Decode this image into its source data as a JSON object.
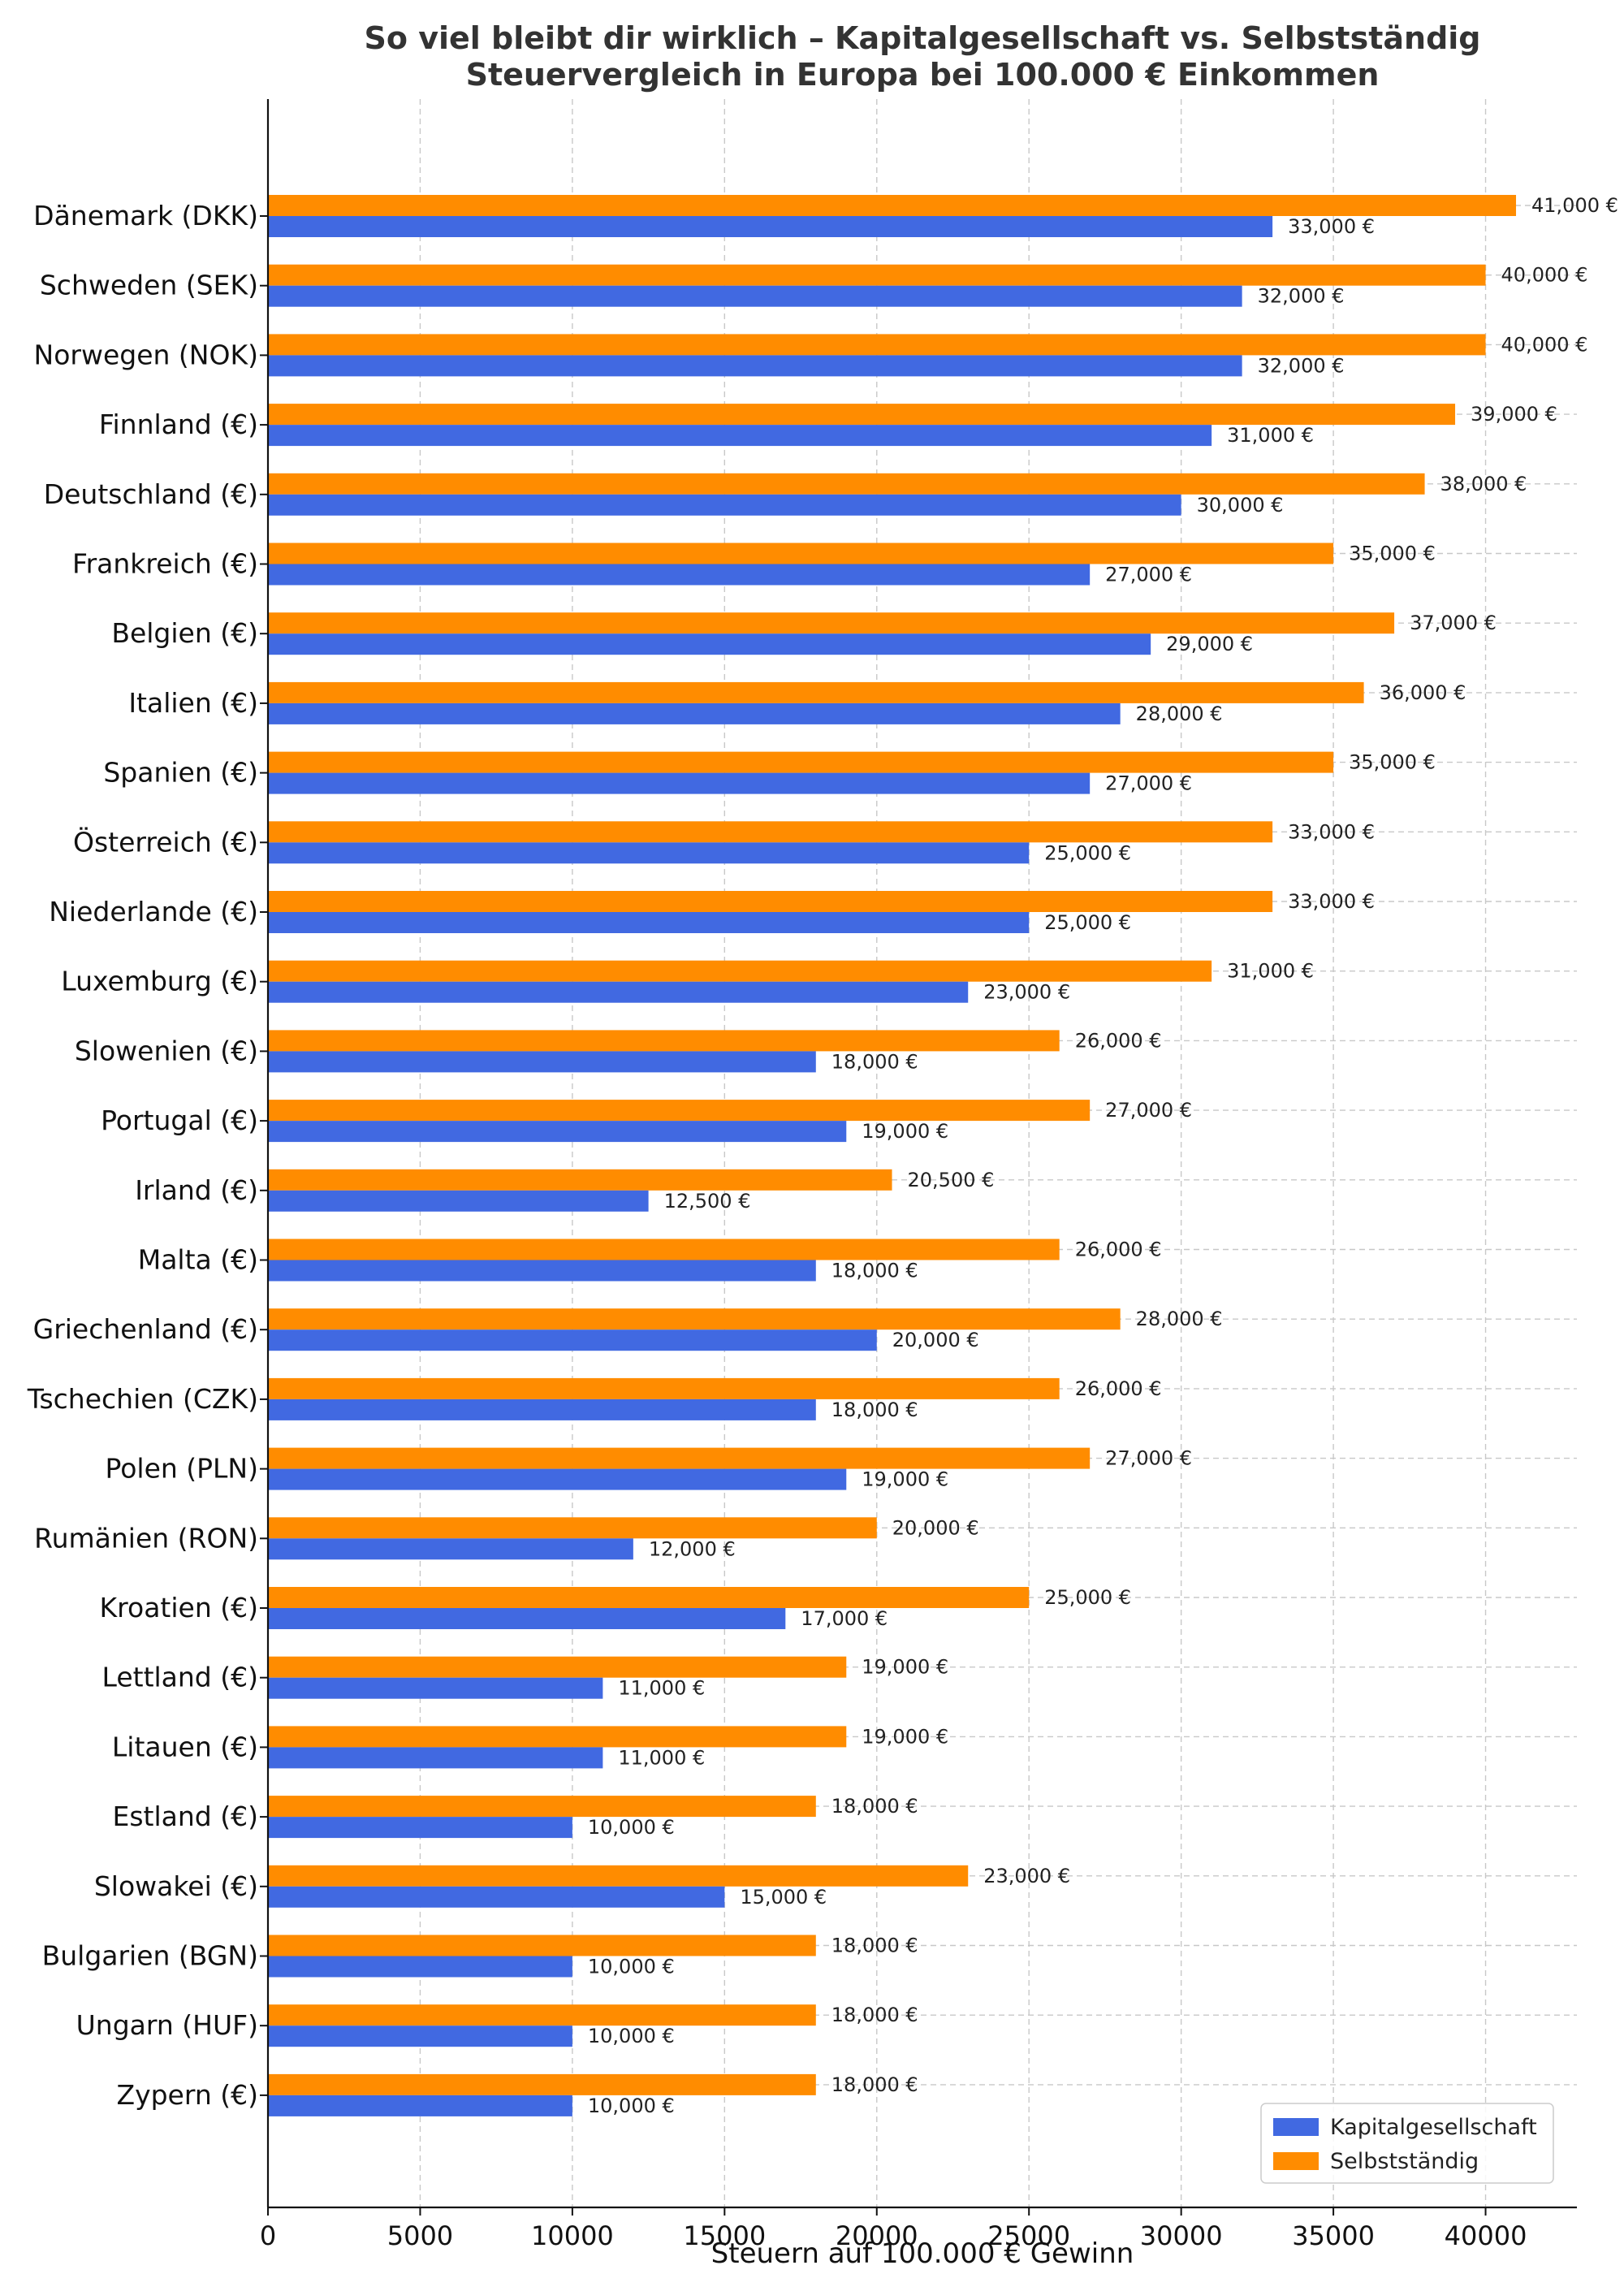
{
  "chart_data": {
    "type": "bar",
    "orientation": "horizontal",
    "title": "So viel bleibt dir wirklich – Kapitalgesellschaft vs. Selbstständig",
    "subtitle": "Steuervergleich in Europa bei 100.000 € Einkommen",
    "xlabel": "Steuern auf 100.000 € Gewinn",
    "ylabel": "",
    "xlim": [
      0,
      43000
    ],
    "xticks": [
      0,
      5000,
      10000,
      15000,
      20000,
      25000,
      30000,
      35000,
      40000
    ],
    "xtick_labels": [
      "0",
      "5000",
      "10000",
      "15000",
      "20000",
      "25000",
      "30000",
      "35000",
      "40000"
    ],
    "grid": true,
    "legend_position": "bottom-right",
    "categories": [
      "Dänemark (DKK)",
      "Schweden (SEK)",
      "Norwegen (NOK)",
      "Finnland (€)",
      "Deutschland (€)",
      "Frankreich (€)",
      "Belgien (€)",
      "Italien (€)",
      "Spanien (€)",
      "Österreich (€)",
      "Niederlande (€)",
      "Luxemburg (€)",
      "Slowenien (€)",
      "Portugal (€)",
      "Irland (€)",
      "Malta (€)",
      "Griechenland (€)",
      "Tschechien (CZK)",
      "Polen (PLN)",
      "Rumänien (RON)",
      "Kroatien (€)",
      "Lettland (€)",
      "Litauen (€)",
      "Estland (€)",
      "Slowakei (€)",
      "Bulgarien (BGN)",
      "Ungarn (HUF)",
      "Zypern (€)"
    ],
    "series": [
      {
        "name": "Kapitalgesellschaft",
        "color": "#4169e1",
        "values": [
          33000,
          32000,
          32000,
          31000,
          30000,
          27000,
          29000,
          28000,
          27000,
          25000,
          25000,
          23000,
          18000,
          19000,
          12500,
          18000,
          20000,
          18000,
          19000,
          12000,
          17000,
          11000,
          11000,
          10000,
          15000,
          10000,
          10000,
          10000
        ],
        "labels": [
          "33,000 €",
          "32,000 €",
          "32,000 €",
          "31,000 €",
          "30,000 €",
          "27,000 €",
          "29,000 €",
          "28,000 €",
          "27,000 €",
          "25,000 €",
          "25,000 €",
          "23,000 €",
          "18,000 €",
          "19,000 €",
          "12,500 €",
          "18,000 €",
          "20,000 €",
          "18,000 €",
          "19,000 €",
          "12,000 €",
          "17,000 €",
          "11,000 €",
          "11,000 €",
          "10,000 €",
          "15,000 €",
          "10,000 €",
          "10,000 €",
          "10,000 €"
        ]
      },
      {
        "name": "Selbstständig",
        "color": "#ff8c00",
        "values": [
          41000,
          40000,
          40000,
          39000,
          38000,
          35000,
          37000,
          36000,
          35000,
          33000,
          33000,
          31000,
          26000,
          27000,
          20500,
          26000,
          28000,
          26000,
          27000,
          20000,
          25000,
          19000,
          19000,
          18000,
          23000,
          18000,
          18000,
          18000
        ],
        "labels": [
          "41,000 €",
          "40,000 €",
          "40,000 €",
          "39,000 €",
          "38,000 €",
          "35,000 €",
          "37,000 €",
          "36,000 €",
          "35,000 €",
          "33,000 €",
          "33,000 €",
          "31,000 €",
          "26,000 €",
          "27,000 €",
          "20,500 €",
          "26,000 €",
          "28,000 €",
          "26,000 €",
          "27,000 €",
          "20,000 €",
          "25,000 €",
          "19,000 €",
          "19,000 €",
          "18,000 €",
          "23,000 €",
          "18,000 €",
          "18,000 €",
          "18,000 €"
        ]
      }
    ]
  }
}
